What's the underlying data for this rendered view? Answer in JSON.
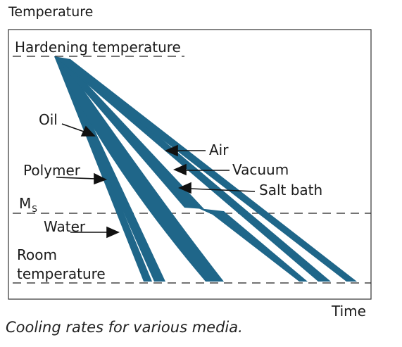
{
  "axes": {
    "y_label": "Temperature",
    "x_label": "Time"
  },
  "levels": {
    "hardening": "Hardening temperature",
    "ms_main": "M",
    "ms_sub": "S",
    "room_line1": "Room",
    "room_line2": "temperature"
  },
  "media": {
    "oil": "Oil",
    "polymer": "Polymer",
    "water": "Water",
    "air": "Air",
    "vacuum": "Vacuum",
    "salt_bath": "Salt bath"
  },
  "caption": "Cooling rates for various media.",
  "colors": {
    "band": "#1f6689",
    "frame": "#333333",
    "text": "#1a1a1a"
  }
}
